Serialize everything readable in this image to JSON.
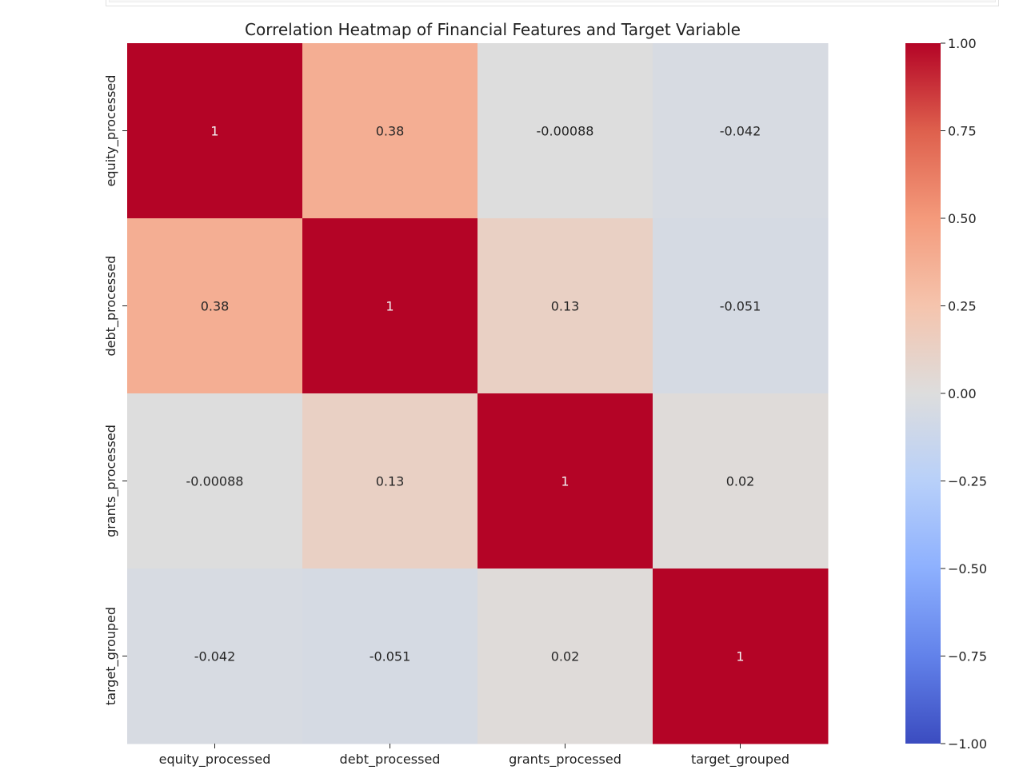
{
  "chart_data": {
    "type": "heatmap",
    "title": "Correlation Heatmap of Financial Features and Target Variable",
    "xlabel": "",
    "ylabel": "",
    "x_categories": [
      "equity_processed",
      "debt_processed",
      "grants_processed",
      "target_grouped"
    ],
    "y_categories": [
      "equity_processed",
      "debt_processed",
      "grants_processed",
      "target_grouped"
    ],
    "values": [
      [
        1,
        0.38,
        -0.00088,
        -0.042
      ],
      [
        0.38,
        1,
        0.13,
        -0.051
      ],
      [
        -0.00088,
        0.13,
        1,
        0.02
      ],
      [
        -0.042,
        -0.051,
        0.02,
        1
      ]
    ],
    "annotations": [
      [
        "1",
        "0.38",
        "-0.00088",
        "-0.042"
      ],
      [
        "0.38",
        "1",
        "0.13",
        "-0.051"
      ],
      [
        "-0.00088",
        "0.13",
        "1",
        "0.02"
      ],
      [
        "-0.042",
        "-0.051",
        "0.02",
        "1"
      ]
    ],
    "colormap": "coolwarm",
    "vmin": -1,
    "vmax": 1,
    "colorbar_ticks": [
      1.0,
      0.75,
      0.5,
      0.25,
      0.0,
      -0.25,
      -0.5,
      -0.75,
      -1.0
    ],
    "colorbar_tick_labels": [
      "1.00",
      "0.75",
      "0.50",
      "0.25",
      "0.00",
      "−0.25",
      "−0.50",
      "−0.75",
      "−1.00"
    ],
    "colorbar_position": "right",
    "grid": false
  }
}
